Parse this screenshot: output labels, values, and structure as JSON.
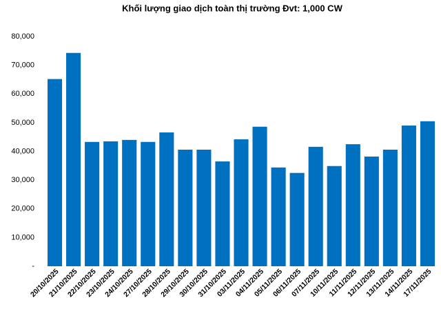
{
  "chart_data": {
    "type": "bar",
    "title": "Khối lượng giao dịch toàn thị trường Đvt: 1,000 CW",
    "categories": [
      "20/10/2025",
      "21/10/2025",
      "22/10/2025",
      "23/10/2025",
      "24/10/2025",
      "27/10/2025",
      "28/10/2025",
      "29/10/2025",
      "30/10/2025",
      "31/10/2025",
      "03/11/2025",
      "04/11/2025",
      "05/11/2025",
      "06/11/2025",
      "07/11/2025",
      "10/11/2025",
      "11/11/2025",
      "12/11/2025",
      "13/11/2025",
      "14/11/2025",
      "17/11/2025"
    ],
    "values": [
      65200,
      74300,
      43300,
      43500,
      44000,
      43300,
      46600,
      40600,
      40600,
      36500,
      44200,
      48600,
      34400,
      32500,
      41600,
      34900,
      42500,
      38200,
      40600,
      49000,
      50500
    ],
    "color": "#0070c0",
    "ylim": [
      0,
      80000
    ],
    "yticks": [
      {
        "value": 0,
        "label": "-"
      },
      {
        "value": 10000,
        "label": "10,000"
      },
      {
        "value": 20000,
        "label": "20,000"
      },
      {
        "value": 30000,
        "label": "30,000"
      },
      {
        "value": 40000,
        "label": "40,000"
      },
      {
        "value": 50000,
        "label": "50,000"
      },
      {
        "value": 60000,
        "label": "60,000"
      },
      {
        "value": 70000,
        "label": "70,000"
      },
      {
        "value": 80000,
        "label": "80,000"
      }
    ],
    "grid": false
  }
}
